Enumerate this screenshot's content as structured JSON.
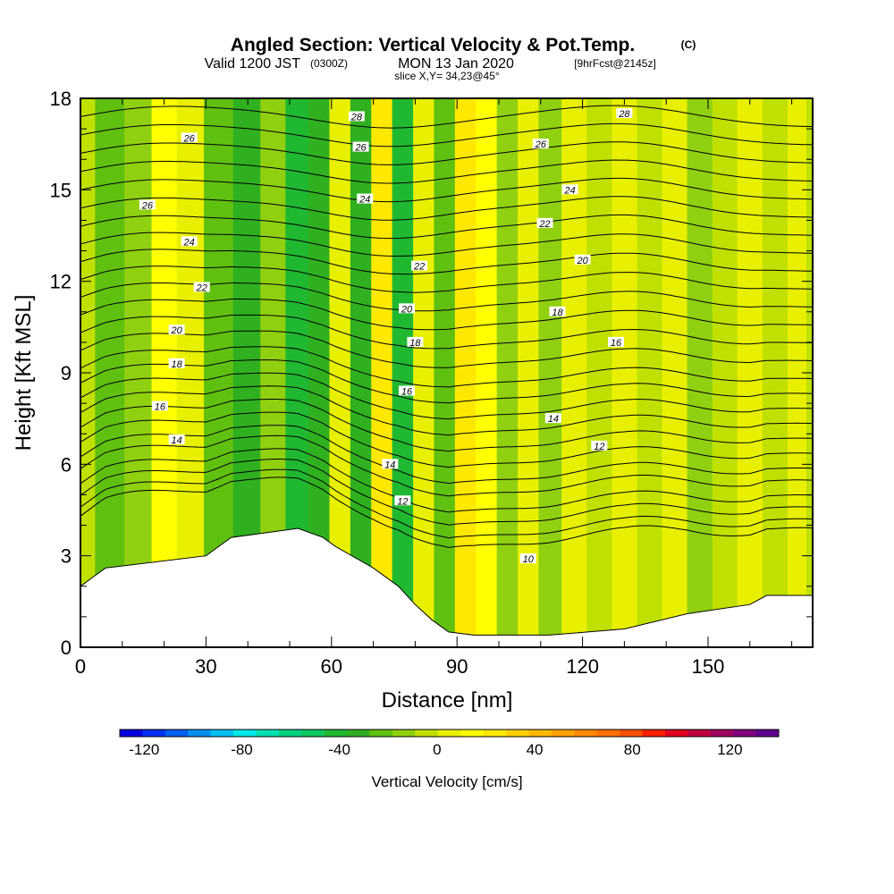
{
  "title": {
    "main": "Angled Section: Vertical Velocity & Pot.Temp.",
    "unit_tag": "(C)",
    "valid_prefix": "Valid 1200 JST",
    "valid_zulu": "(0300Z)",
    "valid_date": "MON 13 Jan 2020",
    "forecast": "[9hrFcst@2145z]",
    "slice": "slice X,Y= 34,23@45°"
  },
  "chart_data": {
    "type": "heatmap",
    "xlabel": "Distance [nm]",
    "ylabel": "Height [Kft MSL]",
    "xlim": [
      0,
      175
    ],
    "ylim": [
      0,
      18
    ],
    "x_ticks": [
      0,
      30,
      60,
      90,
      120,
      150
    ],
    "y_ticks": [
      0,
      3,
      6,
      9,
      12,
      15,
      18
    ],
    "colorbar": {
      "title": "Vertical Velocity [cm/s]",
      "range": [
        -130,
        140
      ],
      "tick_values": [
        -120,
        -80,
        -40,
        0,
        40,
        80,
        120
      ],
      "colors": [
        "#0000e0",
        "#0030f0",
        "#0060f0",
        "#0090f0",
        "#00c0f0",
        "#00e8e8",
        "#00e0b0",
        "#00d080",
        "#10c860",
        "#20b830",
        "#30b020",
        "#60c010",
        "#90d010",
        "#c0e000",
        "#e8f000",
        "#ffff00",
        "#ffe800",
        "#ffd000",
        "#ffb800",
        "#ffa000",
        "#ff8800",
        "#ff7000",
        "#ff5000",
        "#ff2000",
        "#e00020",
        "#c00040",
        "#a00060",
        "#800080",
        "#600090"
      ]
    },
    "velocity_bands": [
      {
        "x": 0,
        "w": -8
      },
      {
        "x": 7,
        "w": -20
      },
      {
        "x": 14,
        "w": -10
      },
      {
        "x": 20,
        "w": 12
      },
      {
        "x": 26,
        "w": 5
      },
      {
        "x": 33,
        "w": -25
      },
      {
        "x": 40,
        "w": -32
      },
      {
        "x": 46,
        "w": -18
      },
      {
        "x": 52,
        "w": -38
      },
      {
        "x": 57,
        "w": -30
      },
      {
        "x": 62,
        "w": 8
      },
      {
        "x": 67,
        "w": -34
      },
      {
        "x": 72,
        "w": 22
      },
      {
        "x": 77,
        "w": -40
      },
      {
        "x": 82,
        "w": 6
      },
      {
        "x": 87,
        "w": -20
      },
      {
        "x": 92,
        "w": 28
      },
      {
        "x": 97,
        "w": 12
      },
      {
        "x": 102,
        "w": -14
      },
      {
        "x": 107,
        "w": 6
      },
      {
        "x": 112,
        "w": -12
      },
      {
        "x": 118,
        "w": 2
      },
      {
        "x": 124,
        "w": -6
      },
      {
        "x": 130,
        "w": 8
      },
      {
        "x": 136,
        "w": -8
      },
      {
        "x": 142,
        "w": 4
      },
      {
        "x": 148,
        "w": -14
      },
      {
        "x": 154,
        "w": -6
      },
      {
        "x": 160,
        "w": 2
      },
      {
        "x": 166,
        "w": -8
      },
      {
        "x": 172,
        "w": 4
      },
      {
        "x": 175,
        "w": -2
      }
    ],
    "terrain": [
      [
        0,
        2.0
      ],
      [
        3,
        2.3
      ],
      [
        6,
        2.6
      ],
      [
        30,
        3.0
      ],
      [
        33,
        3.3
      ],
      [
        36,
        3.6
      ],
      [
        52,
        3.9
      ],
      [
        58,
        3.6
      ],
      [
        61,
        3.3
      ],
      [
        70,
        2.6
      ],
      [
        76,
        2.0
      ],
      [
        80,
        1.4
      ],
      [
        84,
        0.9
      ],
      [
        88,
        0.5
      ],
      [
        94,
        0.4
      ],
      [
        112,
        0.4
      ],
      [
        130,
        0.6
      ],
      [
        145,
        1.1
      ],
      [
        160,
        1.4
      ],
      [
        164,
        1.7
      ],
      [
        175,
        1.7
      ]
    ],
    "contour_labels": [
      {
        "label": "28",
        "x": 66,
        "y": 17.4
      },
      {
        "label": "28",
        "x": 130,
        "y": 17.5
      },
      {
        "label": "26",
        "x": 26,
        "y": 16.7
      },
      {
        "label": "26",
        "x": 67,
        "y": 16.4
      },
      {
        "label": "26",
        "x": 110,
        "y": 16.5
      },
      {
        "label": "26",
        "x": 16,
        "y": 14.5
      },
      {
        "label": "24",
        "x": 68,
        "y": 14.7
      },
      {
        "label": "24",
        "x": 117,
        "y": 15.0
      },
      {
        "label": "24",
        "x": 26,
        "y": 13.3
      },
      {
        "label": "22",
        "x": 111,
        "y": 13.9
      },
      {
        "label": "22",
        "x": 81,
        "y": 12.5
      },
      {
        "label": "20",
        "x": 120,
        "y": 12.7
      },
      {
        "label": "22",
        "x": 29,
        "y": 11.8
      },
      {
        "label": "20",
        "x": 78,
        "y": 11.1
      },
      {
        "label": "18",
        "x": 114,
        "y": 11.0
      },
      {
        "label": "20",
        "x": 23,
        "y": 10.4
      },
      {
        "label": "18",
        "x": 80,
        "y": 10.0
      },
      {
        "label": "16",
        "x": 128,
        "y": 10.0
      },
      {
        "label": "18",
        "x": 23,
        "y": 9.3
      },
      {
        "label": "16",
        "x": 78,
        "y": 8.4
      },
      {
        "label": "16",
        "x": 19,
        "y": 7.9
      },
      {
        "label": "14",
        "x": 113,
        "y": 7.5
      },
      {
        "label": "14",
        "x": 23,
        "y": 6.8
      },
      {
        "label": "12",
        "x": 124,
        "y": 6.6
      },
      {
        "label": "14",
        "x": 74,
        "y": 6.0
      },
      {
        "label": "12",
        "x": 77,
        "y": 4.8
      },
      {
        "label": "10",
        "x": 107,
        "y": 2.9
      }
    ],
    "isentrope_levels": [
      4.0,
      4.3,
      4.7,
      5.1,
      5.6,
      6.0,
      6.5,
      7.0,
      7.5,
      8.0,
      8.5,
      9.0,
      9.6,
      10.2,
      10.8,
      11.4,
      12.0,
      12.6,
      13.2,
      13.8,
      14.4,
      15.0,
      15.6,
      16.2,
      16.8,
      17.4
    ]
  }
}
